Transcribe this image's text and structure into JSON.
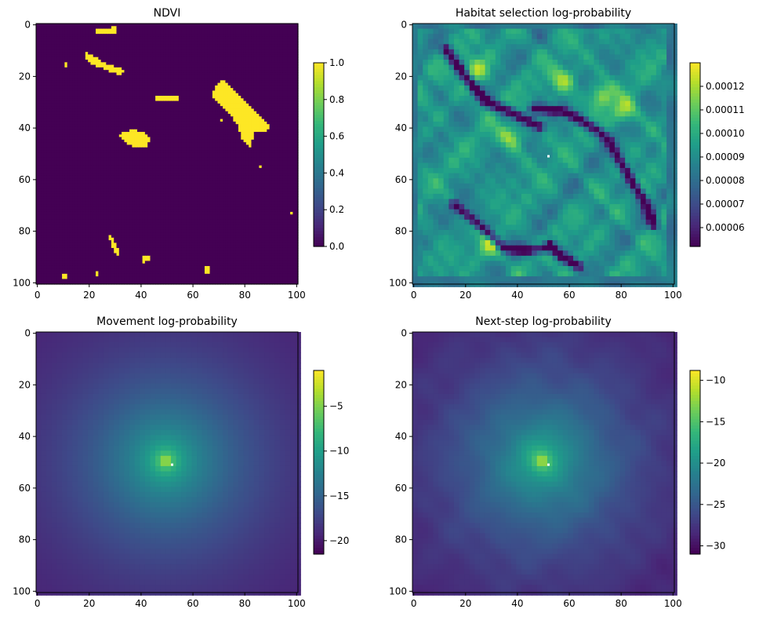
{
  "chart_data": [
    {
      "type": "heatmap",
      "title": "NDVI",
      "colormap": "viridis",
      "xlim": [
        0,
        101
      ],
      "ylim": [
        101,
        0
      ],
      "x_ticks": [
        "0",
        "20",
        "40",
        "60",
        "80",
        "100"
      ],
      "y_ticks": [
        "0",
        "20",
        "40",
        "60",
        "80",
        "100"
      ],
      "colorbar": {
        "min": 0.0,
        "max": 1.0,
        "ticks": [
          "0.0",
          "0.2",
          "0.4",
          "0.6",
          "0.8",
          "1.0"
        ],
        "tick_values": [
          0.0,
          0.2,
          0.4,
          0.6,
          0.8,
          1.0
        ]
      },
      "pattern": "binary-patches",
      "patches": [
        [
          [
            23,
            2.5
          ],
          [
            31,
            2.5
          ],
          [
            31,
            4.5
          ],
          [
            23,
            4.5
          ]
        ],
        [
          [
            29,
            1
          ],
          [
            31,
            1
          ],
          [
            31,
            3
          ],
          [
            29,
            3
          ]
        ],
        [
          [
            19,
            11
          ],
          [
            23,
            13
          ],
          [
            28,
            16
          ],
          [
            33,
            17
          ],
          [
            34,
            19
          ],
          [
            32,
            20
          ],
          [
            27,
            18
          ],
          [
            22,
            16
          ],
          [
            19,
            13
          ]
        ],
        [
          [
            11,
            15
          ],
          [
            12.5,
            15
          ],
          [
            12.5,
            17
          ],
          [
            11,
            17
          ]
        ],
        [
          [
            46,
            28.5
          ],
          [
            55,
            28.5
          ],
          [
            55,
            30.5
          ],
          [
            46,
            30.5
          ]
        ],
        [
          [
            69,
            24
          ],
          [
            72,
            22
          ],
          [
            75,
            24
          ],
          [
            80,
            30
          ],
          [
            86,
            35
          ],
          [
            90,
            40
          ],
          [
            89,
            42
          ],
          [
            84,
            42
          ],
          [
            83,
            48
          ],
          [
            80,
            46
          ],
          [
            78,
            40
          ],
          [
            75,
            35
          ],
          [
            71,
            31
          ],
          [
            68,
            28
          ]
        ],
        [
          [
            71,
            37
          ],
          [
            72.5,
            37
          ],
          [
            72.5,
            38.5
          ],
          [
            71,
            38.5
          ]
        ],
        [
          [
            32,
            43
          ],
          [
            37,
            41
          ],
          [
            42,
            42
          ],
          [
            44,
            44
          ],
          [
            43,
            48
          ],
          [
            38,
            48
          ],
          [
            34,
            46
          ]
        ],
        [
          [
            86,
            55
          ],
          [
            87.5,
            55
          ],
          [
            87.5,
            56.5
          ],
          [
            86,
            56.5
          ]
        ],
        [
          [
            98,
            73.5
          ],
          [
            99,
            73.5
          ],
          [
            99,
            74.5
          ],
          [
            98,
            74.5
          ]
        ],
        [
          [
            28,
            81
          ],
          [
            30,
            84
          ],
          [
            32,
            88
          ],
          [
            31.5,
            90
          ],
          [
            30,
            88
          ],
          [
            28.5,
            84
          ]
        ],
        [
          [
            41,
            90
          ],
          [
            44,
            90
          ],
          [
            44,
            92
          ],
          [
            42.5,
            92
          ],
          [
            42.5,
            93
          ],
          [
            41,
            93
          ]
        ],
        [
          [
            10,
            97.5
          ],
          [
            12,
            97.5
          ],
          [
            12,
            99.5
          ],
          [
            10,
            99.5
          ]
        ],
        [
          [
            23,
            96
          ],
          [
            24,
            96
          ],
          [
            24,
            98
          ],
          [
            23,
            98
          ]
        ],
        [
          [
            65,
            94
          ],
          [
            67,
            94
          ],
          [
            67,
            97
          ],
          [
            65,
            97
          ]
        ]
      ]
    },
    {
      "type": "heatmap",
      "title": "Habitat selection log-probability",
      "colormap": "viridis",
      "xlim": [
        0,
        101
      ],
      "ylim": [
        101,
        0
      ],
      "x_ticks": [
        "0",
        "20",
        "40",
        "60",
        "80",
        "100"
      ],
      "y_ticks": [
        "0",
        "20",
        "40",
        "60",
        "80",
        "100"
      ],
      "colorbar": {
        "min": 5.2e-05,
        "max": 0.00013,
        "ticks": [
          "0.00006",
          "0.00007",
          "0.00008",
          "0.00009",
          "0.00010",
          "0.00011",
          "0.00012"
        ],
        "tick_values": [
          6e-05,
          7e-05,
          8e-05,
          9e-05,
          0.0001,
          0.00011,
          0.00012
        ]
      },
      "pattern": "textured-field",
      "low_ridges": [
        [
          [
            13,
            10
          ],
          [
            20,
            20
          ],
          [
            28,
            30
          ],
          [
            37,
            34
          ],
          [
            45,
            38
          ],
          [
            49,
            40
          ]
        ],
        [
          [
            47,
            33
          ],
          [
            58,
            34
          ],
          [
            66,
            38
          ],
          [
            72,
            42
          ],
          [
            76,
            46
          ],
          [
            80,
            53
          ],
          [
            85,
            62
          ],
          [
            90,
            70
          ],
          [
            93,
            78
          ]
        ],
        [
          [
            16,
            70
          ],
          [
            22,
            75
          ],
          [
            30,
            82
          ],
          [
            35,
            87
          ],
          [
            45,
            88
          ],
          [
            52,
            87
          ]
        ],
        [
          [
            53,
            86
          ],
          [
            57,
            90
          ],
          [
            64,
            94
          ]
        ]
      ],
      "high_spots": [
        [
          25,
          18
        ],
        [
          38,
          44
        ],
        [
          73,
          28
        ],
        [
          82,
          34
        ],
        [
          58,
          22
        ],
        [
          30,
          86
        ]
      ],
      "white_pixel": [
        52,
        51
      ]
    },
    {
      "type": "heatmap",
      "title": "Movement log-probability",
      "colormap": "viridis",
      "xlim": [
        0,
        101
      ],
      "ylim": [
        101,
        0
      ],
      "x_ticks": [
        "0",
        "20",
        "40",
        "60",
        "80",
        "100"
      ],
      "y_ticks": [
        "0",
        "20",
        "40",
        "60",
        "80",
        "100"
      ],
      "colorbar": {
        "min": -21.5,
        "max": -1.0,
        "ticks": [
          "−5",
          "−10",
          "−15",
          "−20"
        ],
        "tick_values": [
          -5,
          -10,
          -15,
          -20
        ]
      },
      "pattern": "radial",
      "center": [
        50,
        50
      ],
      "white_pixel": [
        52,
        51
      ]
    },
    {
      "type": "heatmap",
      "title": "Next-step log-probability",
      "colormap": "viridis",
      "xlim": [
        0,
        101
      ],
      "ylim": [
        101,
        0
      ],
      "x_ticks": [
        "0",
        "20",
        "40",
        "60",
        "80",
        "100"
      ],
      "y_ticks": [
        "0",
        "20",
        "40",
        "60",
        "80",
        "100"
      ],
      "colorbar": {
        "min": -31.0,
        "max": -8.8,
        "ticks": [
          "−10",
          "−15",
          "−20",
          "−25",
          "−30"
        ],
        "tick_values": [
          -10,
          -15,
          -20,
          -25,
          -30
        ]
      },
      "pattern": "radial-textured",
      "center": [
        50,
        50
      ],
      "white_pixel": [
        52,
        51
      ]
    }
  ]
}
